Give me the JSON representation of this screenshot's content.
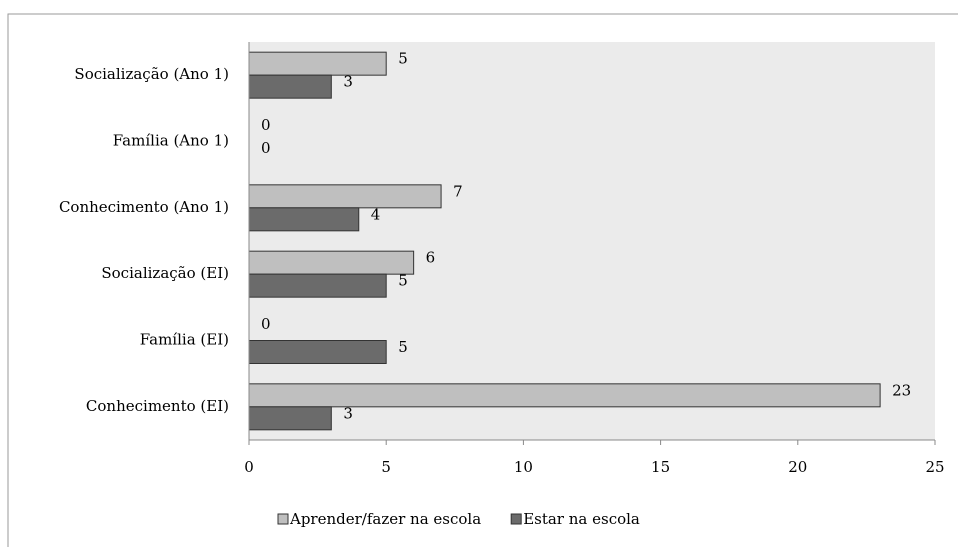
{
  "chart_data": {
    "type": "hbar",
    "categories": [
      "Socialização (Ano 1)",
      "Família (Ano 1)",
      "Conhecimento (Ano 1)",
      "Socialização (EI)",
      "Família (EI)",
      "Conhecimento (EI)"
    ],
    "series": [
      {
        "name": "Aprender/fazer na escola",
        "color": "#bfbfbf",
        "values": [
          5,
          0,
          7,
          6,
          0,
          23
        ]
      },
      {
        "name": "Estar na escola",
        "color": "#6b6b6b",
        "values": [
          3,
          0,
          4,
          5,
          5,
          3
        ]
      }
    ],
    "xlim": [
      0,
      25
    ],
    "xticks": [
      0,
      5,
      10,
      15,
      20,
      25
    ],
    "legend": "bottom"
  }
}
